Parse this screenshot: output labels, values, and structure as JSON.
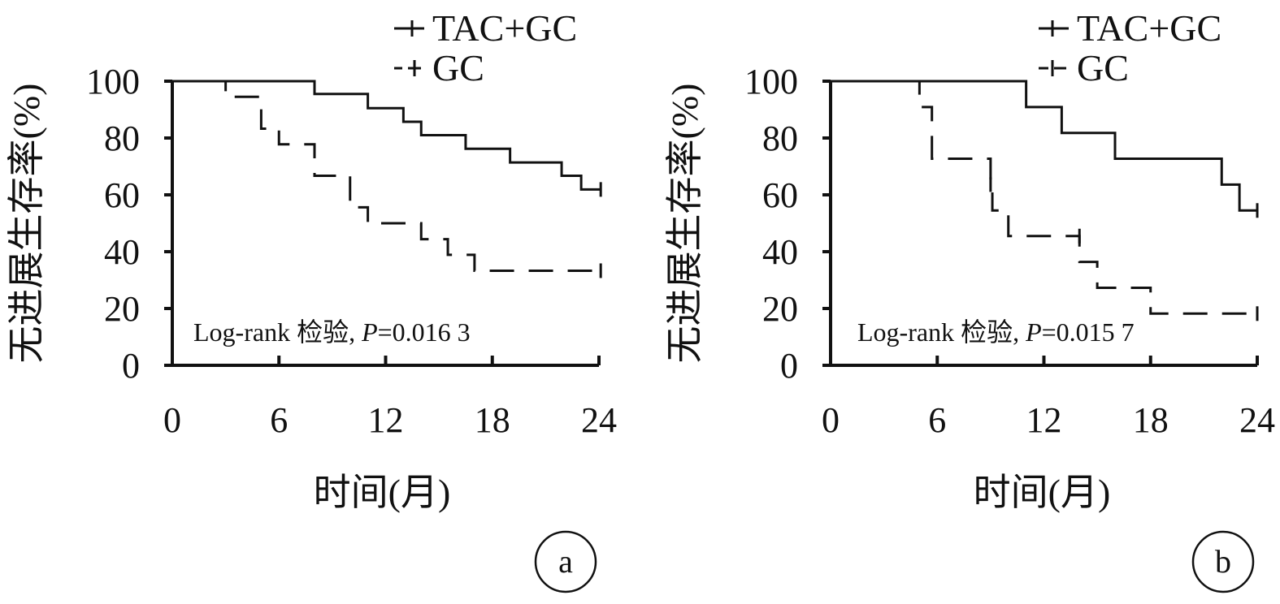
{
  "chart_data": [
    {
      "type": "line",
      "panel_label": "a",
      "ylabel": "无进展生存率(%)",
      "xlabel": "时间(月)",
      "x_ticks": [
        0,
        6,
        12,
        18,
        24
      ],
      "y_ticks": [
        0,
        20,
        40,
        60,
        80,
        100
      ],
      "xlim": [
        0,
        24
      ],
      "ylim": [
        0,
        100
      ],
      "annotation_prefix": "Log-rank 检验, ",
      "annotation_p_symbol": "P",
      "annotation_p_value": "=0.016 3",
      "legend_placement": "top-right",
      "series": [
        {
          "name": "TAC+GC",
          "style": "solid",
          "steps": [
            [
              0,
              100
            ],
            [
              8,
              95.5
            ],
            [
              11,
              90.5
            ],
            [
              13,
              85.7
            ],
            [
              14,
              81
            ],
            [
              16.5,
              76.2
            ],
            [
              19,
              71.4
            ],
            [
              21.9,
              66.7
            ],
            [
              23,
              61.9
            ]
          ],
          "end_x": 24.1,
          "censors": [
            [
              24.1,
              61.9
            ]
          ]
        },
        {
          "name": "GC",
          "style": "dashed",
          "steps": [
            [
              0,
              100
            ],
            [
              3,
              94.5
            ],
            [
              5,
              83.3
            ],
            [
              6,
              77.8
            ],
            [
              8,
              66.7
            ],
            [
              10,
              55.6
            ],
            [
              11,
              50
            ],
            [
              14,
              44.4
            ],
            [
              15.5,
              38.9
            ],
            [
              17,
              33.3
            ]
          ],
          "end_x": 24.1,
          "censors": [
            [
              24.1,
              33.3
            ]
          ]
        }
      ]
    },
    {
      "type": "line",
      "panel_label": "b",
      "ylabel": "无进展生存率(%)",
      "xlabel": "时间(月)",
      "x_ticks": [
        0,
        6,
        12,
        18,
        24
      ],
      "y_ticks": [
        0,
        20,
        40,
        60,
        80,
        100
      ],
      "xlim": [
        0,
        24
      ],
      "ylim": [
        0,
        100
      ],
      "annotation_prefix": "Log-rank 检验, ",
      "annotation_p_symbol": "P",
      "annotation_p_value": "=0.015 7",
      "legend_placement": "top-right",
      "series": [
        {
          "name": "TAC+GC",
          "style": "solid",
          "steps": [
            [
              0,
              100
            ],
            [
              11,
              90.9
            ],
            [
              13,
              81.8
            ],
            [
              16,
              72.7
            ],
            [
              22,
              63.6
            ],
            [
              23,
              54.5
            ]
          ],
          "end_x": 24,
          "censors": [
            [
              24,
              54.5
            ]
          ]
        },
        {
          "name": "GC",
          "style": "dashed",
          "steps": [
            [
              0,
              100
            ],
            [
              5,
              90.9
            ],
            [
              5.7,
              72.7
            ],
            [
              9,
              63.6
            ],
            [
              9.1,
              54.5
            ],
            [
              10,
              45.5
            ],
            [
              14,
              36.4
            ],
            [
              15,
              27.3
            ],
            [
              18,
              18.2
            ]
          ],
          "end_x": 24,
          "censors": [
            [
              9,
              63.6
            ],
            [
              14,
              45.5
            ],
            [
              24,
              18.2
            ]
          ]
        }
      ]
    }
  ]
}
